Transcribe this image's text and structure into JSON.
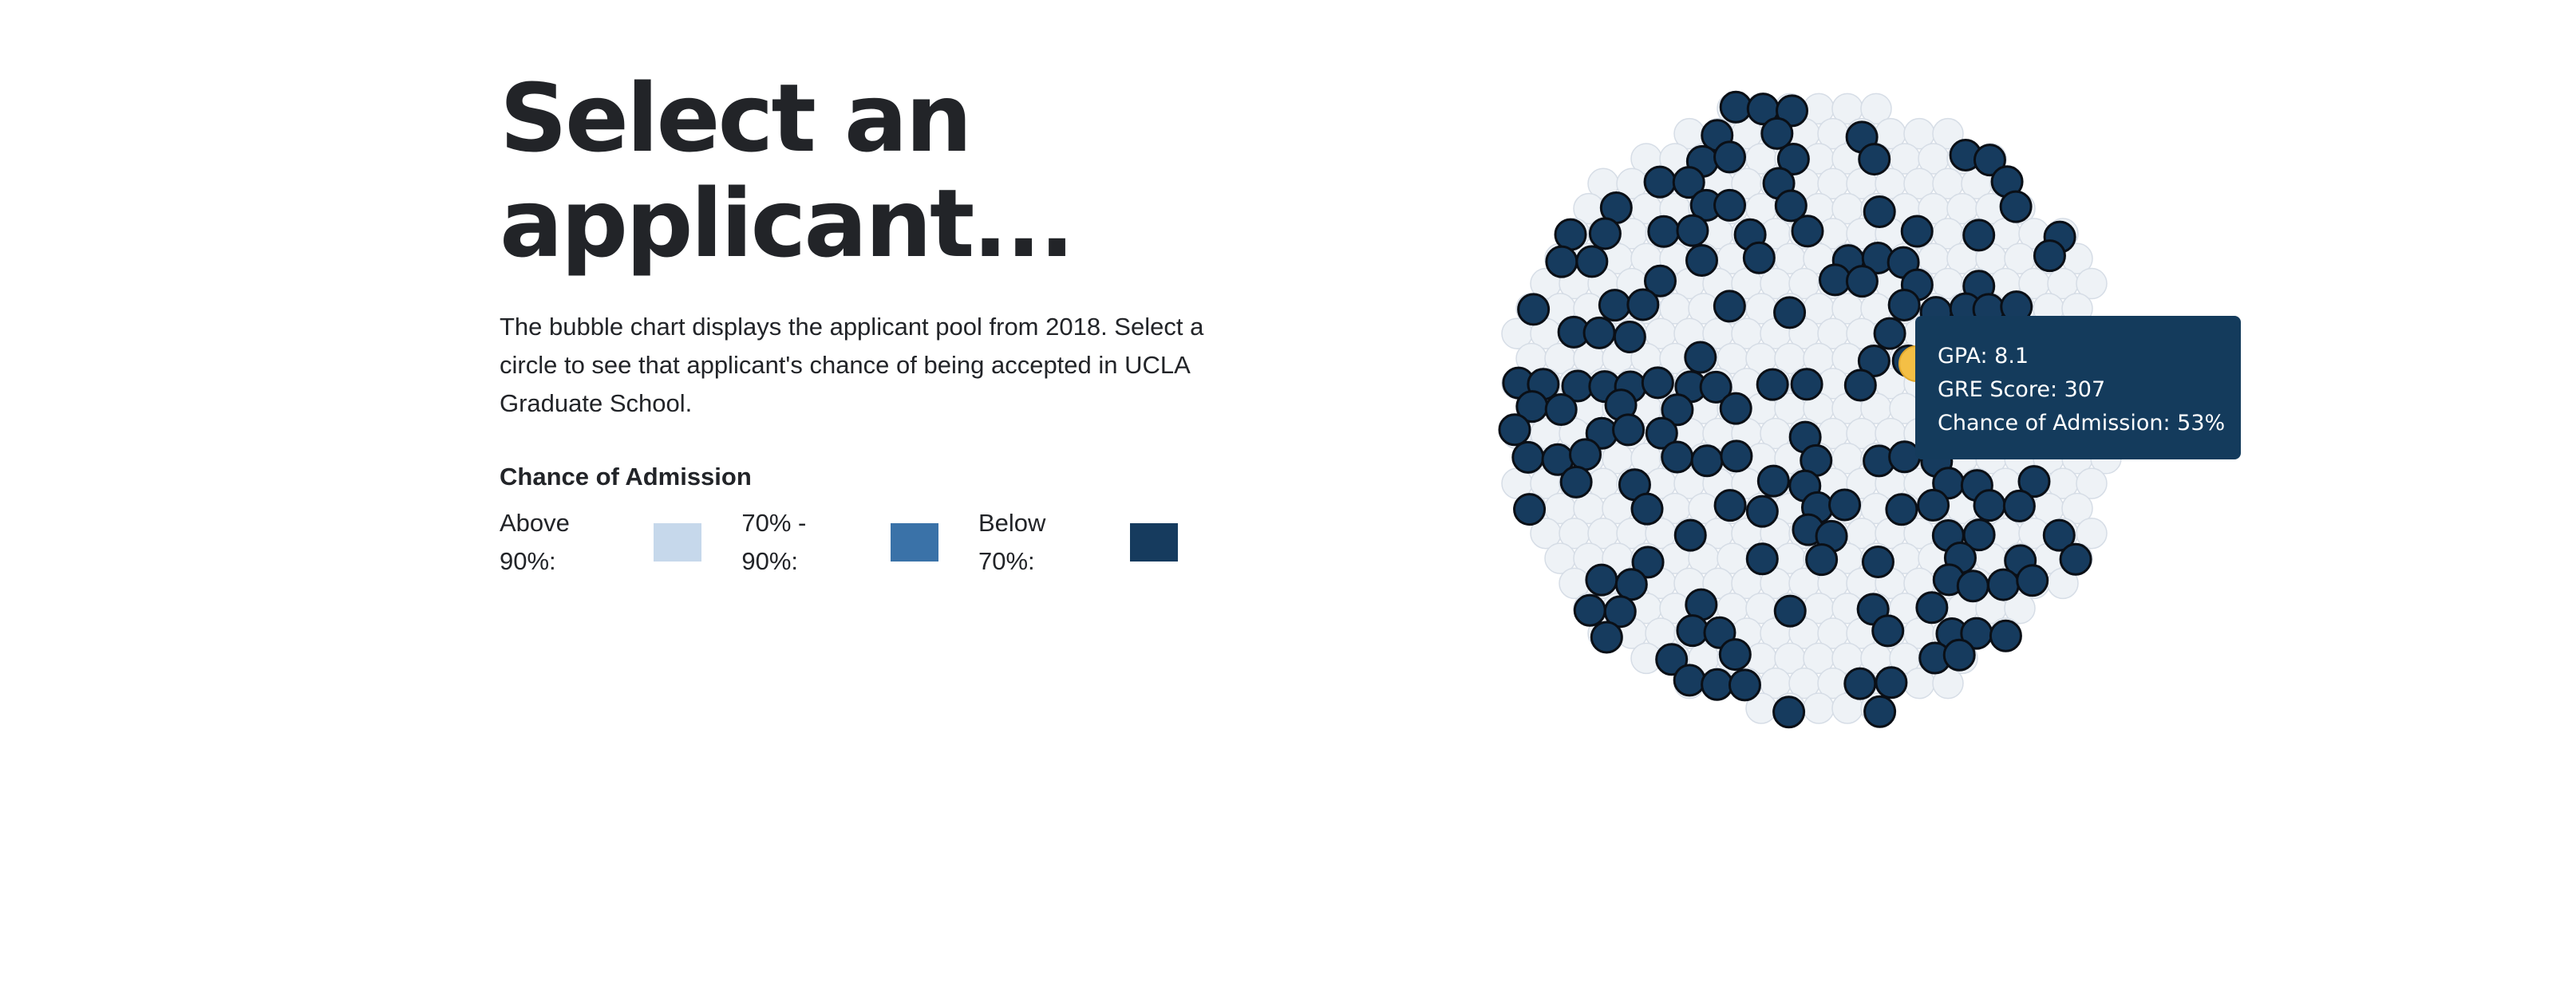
{
  "header": {
    "title": "Select an applicant..."
  },
  "intro": {
    "text": "The bubble chart displays the applicant pool from 2018. Select a circle to see that applicant's chance of being accepted in UCLA Graduate School."
  },
  "legend": {
    "title": "Chance of Admission",
    "items": [
      {
        "label": "Above 90%:",
        "color": "#c6d8eb"
      },
      {
        "label": "70% - 90%:",
        "color": "#3a72a8"
      },
      {
        "label": "Below 70%:",
        "color": "#163b5e"
      }
    ]
  },
  "colors": {
    "selected": "#f4bf45",
    "below70": "#163b5e",
    "background_bubble": "#eef2f6",
    "tooltip_bg": "#143b5c"
  },
  "tooltip": {
    "gpa": "GPA: 8.1",
    "gre": "GRE Score: 307",
    "chance": "Chance of Admission: 53%"
  }
}
